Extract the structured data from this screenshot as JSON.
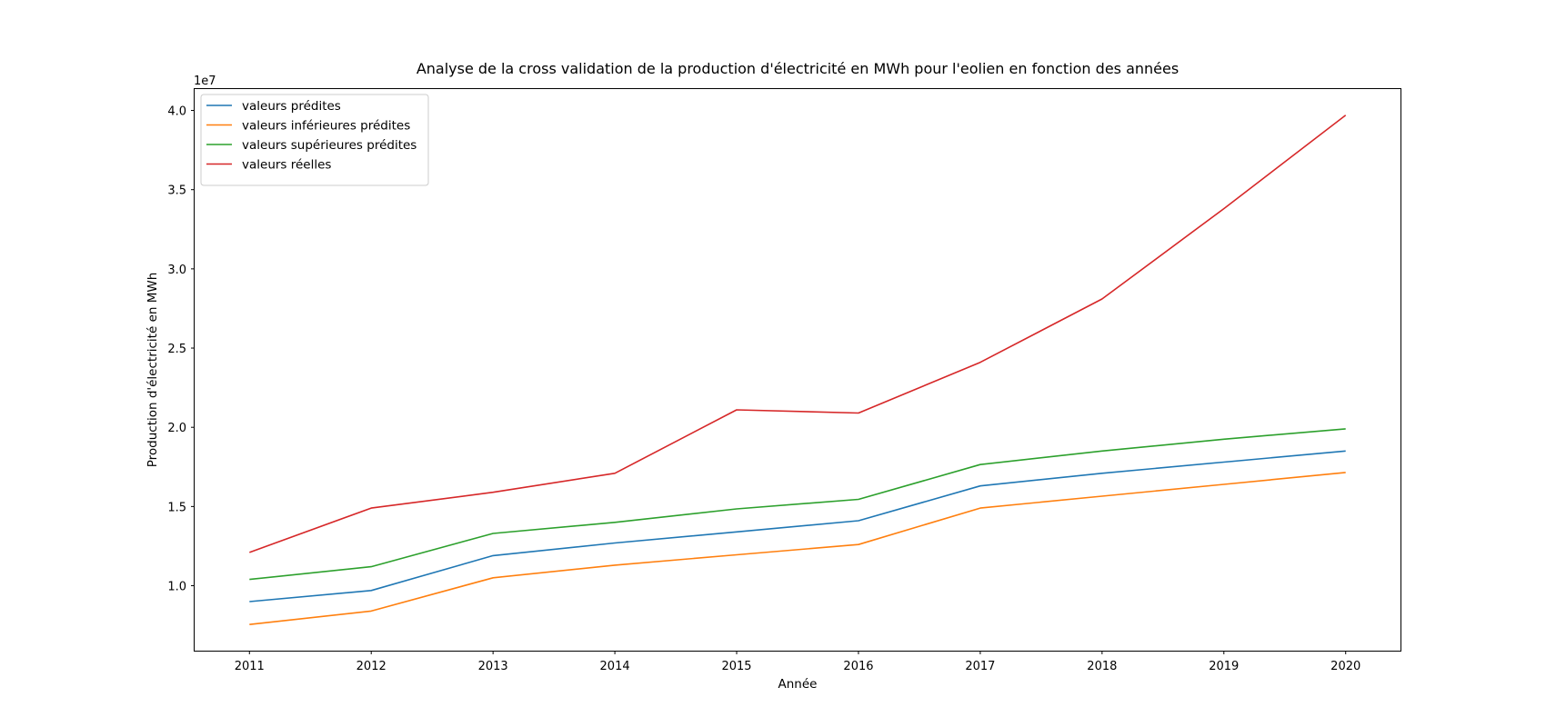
{
  "chart_data": {
    "type": "line",
    "title": "Analyse de la cross validation de la production d'électricité en MWh pour l'eolien en fonction des années",
    "xlabel": "Année",
    "ylabel": "Production d'électricité en MWh",
    "y_offset_text": "1e7",
    "x": [
      2011,
      2012,
      2013,
      2014,
      2015,
      2016,
      2017,
      2018,
      2019,
      2020
    ],
    "x_tick_labels": [
      "2011",
      "2012",
      "2013",
      "2014",
      "2015",
      "2016",
      "2017",
      "2018",
      "2019",
      "2020"
    ],
    "y_ticks": [
      1.0,
      1.5,
      2.0,
      2.5,
      3.0,
      3.5,
      4.0
    ],
    "y_tick_labels": [
      "1.0",
      "1.5",
      "2.0",
      "2.5",
      "3.0",
      "3.5",
      "4.0"
    ],
    "xlim": [
      2010.55,
      2020.45
    ],
    "ylim": [
      0.59,
      4.135
    ],
    "grid": false,
    "legend_position": "top-left",
    "series": [
      {
        "name": "valeurs prédites",
        "color": "#1f77b4",
        "values": [
          0.9,
          0.97,
          1.19,
          1.27,
          1.34,
          1.41,
          1.63,
          1.71,
          1.78,
          1.85
        ]
      },
      {
        "name": "valeurs inférieures prédites",
        "color": "#ff7f0e",
        "values": [
          0.755,
          0.84,
          1.05,
          1.13,
          1.195,
          1.26,
          1.49,
          1.565,
          1.64,
          1.715
        ]
      },
      {
        "name": "valeurs supérieures prédites",
        "color": "#2ca02c",
        "values": [
          1.04,
          1.12,
          1.33,
          1.4,
          1.485,
          1.545,
          1.765,
          1.85,
          1.925,
          1.99
        ]
      },
      {
        "name": "valeurs réelles",
        "color": "#d62728",
        "values": [
          1.21,
          1.49,
          1.59,
          1.71,
          2.11,
          2.09,
          2.41,
          2.81,
          3.38,
          3.97
        ]
      }
    ]
  }
}
